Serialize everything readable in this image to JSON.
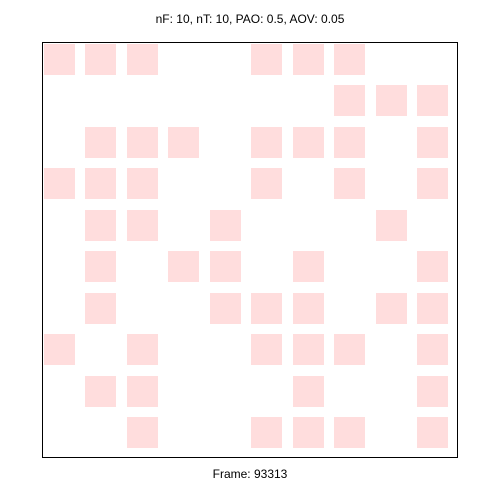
{
  "header": {
    "title": "nF: 10, nT: 10, PAO: 0.5, AOV: 0.05"
  },
  "footer": {
    "frame_label": "Frame: 93313"
  },
  "grid": {
    "rows": 10,
    "cols": 10,
    "cell_color": "#ffdddd",
    "cells": [
      [
        1,
        1,
        1,
        0,
        0,
        1,
        1,
        1,
        0,
        0
      ],
      [
        0,
        0,
        0,
        0,
        0,
        0,
        0,
        1,
        1,
        1
      ],
      [
        0,
        1,
        1,
        1,
        0,
        1,
        1,
        1,
        0,
        1
      ],
      [
        1,
        1,
        1,
        0,
        0,
        1,
        0,
        1,
        0,
        1
      ],
      [
        0,
        1,
        1,
        0,
        1,
        0,
        0,
        0,
        1,
        0
      ],
      [
        0,
        1,
        0,
        1,
        1,
        0,
        1,
        0,
        0,
        1
      ],
      [
        0,
        1,
        0,
        0,
        1,
        1,
        1,
        0,
        1,
        1
      ],
      [
        1,
        0,
        1,
        0,
        0,
        1,
        1,
        1,
        0,
        1
      ],
      [
        0,
        1,
        1,
        0,
        0,
        0,
        1,
        0,
        0,
        1
      ],
      [
        0,
        0,
        1,
        0,
        0,
        1,
        1,
        1,
        0,
        1
      ]
    ]
  }
}
